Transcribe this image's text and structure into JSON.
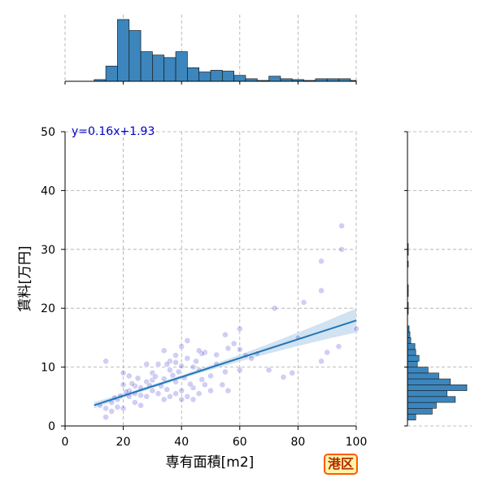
{
  "badge": "港区",
  "chart_data": {
    "type": "scatter",
    "xlabel": "専有面積[m2]",
    "ylabel": "賃料[万円]",
    "xlim": [
      0,
      100
    ],
    "ylim": [
      0,
      50
    ],
    "xticks": [
      "0",
      "20",
      "40",
      "60",
      "80",
      "100"
    ],
    "yticks": [
      "0",
      "10",
      "20",
      "30",
      "40",
      "50"
    ],
    "grid": true,
    "annotation": "y=0.16x+1.93",
    "regression": {
      "slope": 0.16,
      "intercept": 1.93,
      "x_range": [
        10,
        100
      ]
    },
    "colors": {
      "points": "#2a1fcf",
      "line": "#1f77b4",
      "band": "#c6dbef",
      "hist": "#3c86bd",
      "annotation": "#0000cc",
      "badge_border": "#ff5a00",
      "badge_fill": "#fff3a8",
      "badge_text": "#b02b00"
    },
    "points": [
      [
        95,
        34
      ],
      [
        95,
        30
      ],
      [
        88,
        28
      ],
      [
        88,
        23
      ],
      [
        82,
        21
      ],
      [
        72,
        20
      ],
      [
        80,
        15
      ],
      [
        60,
        16.5
      ],
      [
        100,
        16.5
      ],
      [
        94,
        13.5
      ],
      [
        90,
        12.5
      ],
      [
        88,
        11
      ],
      [
        78,
        9
      ],
      [
        75,
        8.3
      ],
      [
        70,
        9.5
      ],
      [
        60,
        9.5
      ],
      [
        55,
        9.2
      ],
      [
        62,
        12
      ],
      [
        64,
        11.5
      ],
      [
        66,
        12.3
      ],
      [
        58,
        14
      ],
      [
        55,
        15.5
      ],
      [
        48,
        12.5
      ],
      [
        45,
        11
      ],
      [
        42,
        14.5
      ],
      [
        40,
        13.5
      ],
      [
        38,
        12
      ],
      [
        36,
        11
      ],
      [
        44,
        10
      ],
      [
        46,
        9.5
      ],
      [
        50,
        8.5
      ],
      [
        52,
        10.5
      ],
      [
        48,
        7
      ],
      [
        44,
        6.5
      ],
      [
        40,
        6
      ],
      [
        38,
        7.5
      ],
      [
        34,
        8
      ],
      [
        36,
        9.5
      ],
      [
        32,
        10.5
      ],
      [
        30,
        9
      ],
      [
        28,
        7.5
      ],
      [
        26,
        6.5
      ],
      [
        24,
        5.5
      ],
      [
        22,
        6
      ],
      [
        20,
        7
      ],
      [
        18,
        4.5
      ],
      [
        16,
        4
      ],
      [
        14,
        3
      ],
      [
        12,
        3.5
      ],
      [
        14,
        11
      ],
      [
        22,
        5
      ],
      [
        24,
        4
      ],
      [
        26,
        3.5
      ],
      [
        20,
        3
      ],
      [
        18,
        3.2
      ],
      [
        16,
        2.5
      ],
      [
        14,
        1.5
      ],
      [
        22,
        8.5
      ],
      [
        20,
        9
      ],
      [
        28,
        10.5
      ],
      [
        30,
        6
      ],
      [
        32,
        5.5
      ],
      [
        34,
        4.5
      ],
      [
        36,
        5
      ],
      [
        38,
        5.5
      ],
      [
        40,
        4.5
      ],
      [
        42,
        5
      ],
      [
        44,
        4.5
      ],
      [
        46,
        5.5
      ],
      [
        50,
        6
      ],
      [
        54,
        7
      ],
      [
        56,
        6
      ],
      [
        28,
        5
      ],
      [
        26,
        5.2
      ],
      [
        24,
        6.8
      ],
      [
        23,
        7.2
      ],
      [
        21,
        5.8
      ],
      [
        19,
        5.1
      ],
      [
        17,
        4.8
      ],
      [
        30,
        7.8
      ],
      [
        33,
        6.8
      ],
      [
        35,
        6.2
      ],
      [
        41,
        8.2
      ],
      [
        43,
        7.1
      ],
      [
        47,
        7.9
      ],
      [
        37,
        8.6
      ],
      [
        39,
        9.2
      ],
      [
        31,
        8.4
      ],
      [
        29,
        6.9
      ],
      [
        25,
        8.1
      ],
      [
        40,
        10.2
      ],
      [
        42,
        11.5
      ],
      [
        38,
        10.8
      ],
      [
        35,
        10.5
      ],
      [
        34,
        12.8
      ],
      [
        47,
        12.3
      ],
      [
        52,
        12.1
      ],
      [
        56,
        13.2
      ],
      [
        46,
        12.8
      ],
      [
        60,
        13
      ]
    ],
    "top_hist": {
      "bins": [
        [
          10,
          14,
          2
        ],
        [
          14,
          18,
          18
        ],
        [
          18,
          22,
          73
        ],
        [
          22,
          26,
          60
        ],
        [
          26,
          30,
          35
        ],
        [
          30,
          34,
          31
        ],
        [
          34,
          38,
          28
        ],
        [
          38,
          42,
          35
        ],
        [
          42,
          46,
          16
        ],
        [
          46,
          50,
          11
        ],
        [
          50,
          54,
          13
        ],
        [
          54,
          58,
          12
        ],
        [
          58,
          62,
          7
        ],
        [
          62,
          66,
          3
        ],
        [
          66,
          70,
          1
        ],
        [
          70,
          74,
          6
        ],
        [
          74,
          78,
          3
        ],
        [
          78,
          82,
          2
        ],
        [
          82,
          86,
          1
        ],
        [
          86,
          90,
          3
        ],
        [
          90,
          94,
          3
        ],
        [
          94,
          98,
          3
        ],
        [
          98,
          100,
          1
        ]
      ],
      "max": 73
    },
    "right_hist": {
      "bins": [
        [
          1,
          2,
          10
        ],
        [
          2,
          3,
          30
        ],
        [
          3,
          4,
          35
        ],
        [
          4,
          5,
          58
        ],
        [
          5,
          6,
          48
        ],
        [
          6,
          7,
          72
        ],
        [
          7,
          8,
          52
        ],
        [
          8,
          9,
          38
        ],
        [
          9,
          10,
          25
        ],
        [
          10,
          11,
          12
        ],
        [
          11,
          12,
          14
        ],
        [
          12,
          13,
          10
        ],
        [
          13,
          14,
          9
        ],
        [
          14,
          15,
          4
        ],
        [
          15,
          16,
          3
        ],
        [
          16,
          17,
          2
        ],
        [
          19,
          20,
          1
        ],
        [
          20,
          21,
          1
        ],
        [
          22,
          23,
          1
        ],
        [
          23,
          24,
          1
        ],
        [
          27,
          28,
          1
        ],
        [
          29,
          30,
          1
        ],
        [
          30,
          31,
          1
        ]
      ],
      "max": 72
    }
  }
}
